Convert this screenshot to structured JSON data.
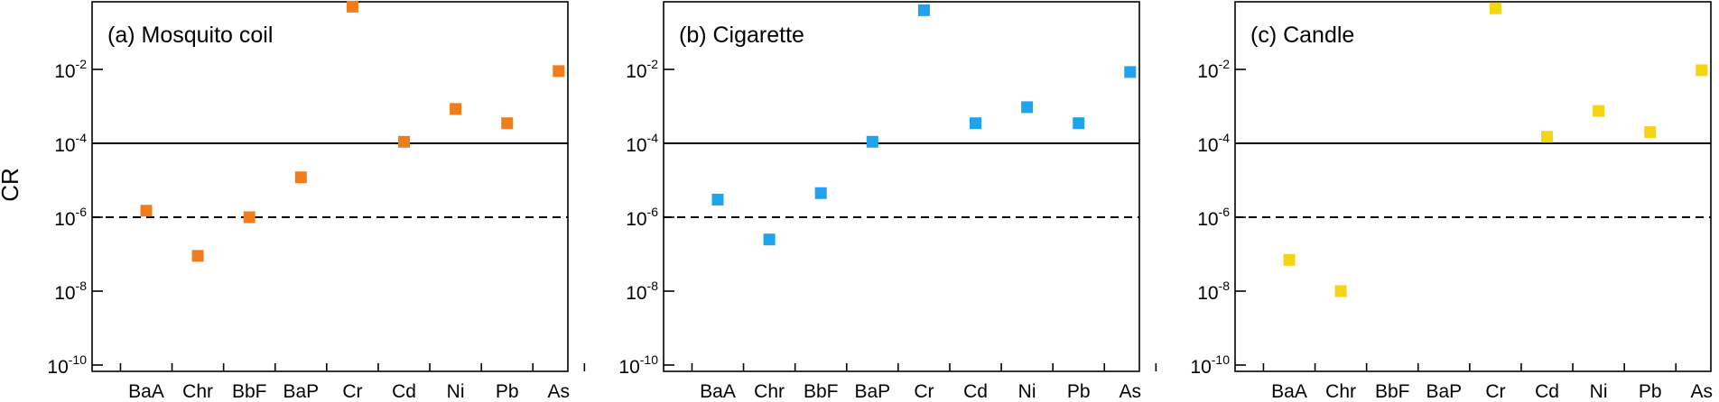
{
  "ylabel": "CR",
  "chart_data": [
    {
      "type": "scatter",
      "title": "(a) Mosquito coil",
      "categories": [
        "BaA",
        "Chr",
        "BbF",
        "BaP",
        "Cr",
        "Cd",
        "Ni",
        "Pb",
        "As"
      ],
      "values": [
        1.5e-06,
        9e-08,
        1e-06,
        1.2e-05,
        0.5,
        0.00011,
        0.00085,
        0.00035,
        0.009
      ],
      "ylabel": "CR",
      "yscale": "log",
      "ylim": [
        1e-10,
        1
      ],
      "yticks": [
        "10",
        "10",
        "10",
        "10",
        "10"
      ],
      "ytick_exponents": [
        "-10",
        "-8",
        "-6",
        "-4",
        "-2"
      ],
      "reference_lines": [
        {
          "value": 0.0001,
          "style": "solid"
        },
        {
          "value": 1e-06,
          "style": "dashed"
        }
      ],
      "marker": "square",
      "color": "#f07d1a"
    },
    {
      "type": "scatter",
      "title": "(b) Cigarette",
      "categories": [
        "BaA",
        "Chr",
        "BbF",
        "BaP",
        "Cr",
        "Cd",
        "Ni",
        "Pb",
        "As"
      ],
      "values": [
        3e-06,
        2.5e-07,
        4.5e-06,
        0.00011,
        0.4,
        0.00035,
        0.00095,
        0.00035,
        0.0085
      ],
      "ylabel": "",
      "yscale": "log",
      "ylim": [
        1e-10,
        1
      ],
      "yticks": [
        "10",
        "10",
        "10",
        "10",
        "10"
      ],
      "ytick_exponents": [
        "-10",
        "-8",
        "-6",
        "-4",
        "-2"
      ],
      "reference_lines": [
        {
          "value": 0.0001,
          "style": "solid"
        },
        {
          "value": 1e-06,
          "style": "dashed"
        }
      ],
      "marker": "square",
      "color": "#1ea3ec"
    },
    {
      "type": "scatter",
      "title": "(c) Candle",
      "categories": [
        "BaA",
        "Chr",
        "BbF",
        "BaP",
        "Cr",
        "Cd",
        "Ni",
        "Pb",
        "As"
      ],
      "values": [
        7e-08,
        1e-08,
        null,
        null,
        0.45,
        0.00015,
        0.00075,
        0.0002,
        0.0095
      ],
      "ylabel": "",
      "yscale": "log",
      "ylim": [
        1e-10,
        1
      ],
      "yticks": [
        "10",
        "10",
        "10",
        "10",
        "10"
      ],
      "ytick_exponents": [
        "-10",
        "-8",
        "-6",
        "-4",
        "-2"
      ],
      "reference_lines": [
        {
          "value": 0.0001,
          "style": "solid"
        },
        {
          "value": 1e-06,
          "style": "dashed"
        }
      ],
      "marker": "square",
      "color": "#f5d414"
    }
  ]
}
